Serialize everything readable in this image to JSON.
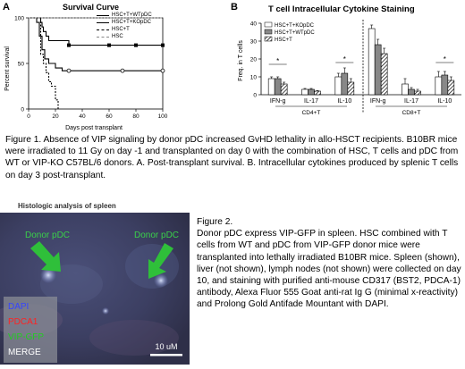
{
  "panel_a": {
    "letter": "A",
    "chart_data": {
      "type": "line",
      "title": "Survival Curve",
      "xlabel": "Days post transplant",
      "ylabel": "Percent survival",
      "xlim": [
        0,
        100
      ],
      "ylim": [
        0,
        100
      ],
      "xticks": [
        "0",
        "20",
        "40",
        "60",
        "80",
        "100"
      ],
      "yticks": [
        "0",
        "50",
        "100"
      ],
      "legend_position": "top-right",
      "series": [
        {
          "name": "HSC+T+WTpDC",
          "style": "solid-filled-square",
          "x": [
            0,
            8,
            9,
            10,
            11,
            13,
            15,
            30,
            100
          ],
          "y": [
            100,
            100,
            95,
            90,
            85,
            80,
            75,
            70,
            70
          ]
        },
        {
          "name": "HSC+T+KOpDC",
          "style": "solid-open-circle",
          "x": [
            0,
            6,
            8,
            10,
            12,
            15,
            20,
            25,
            100
          ],
          "y": [
            100,
            95,
            80,
            65,
            55,
            50,
            45,
            42,
            42
          ]
        },
        {
          "name": "HSC+T",
          "style": "dashed",
          "x": [
            0,
            7,
            9,
            11,
            13,
            15,
            17,
            20,
            22
          ],
          "y": [
            100,
            100,
            60,
            50,
            40,
            30,
            25,
            10,
            0
          ]
        },
        {
          "name": "HSC",
          "style": "dashed-flat",
          "x": [
            0,
            100
          ],
          "y": [
            100,
            100
          ]
        }
      ]
    }
  },
  "panel_b": {
    "letter": "B",
    "chart_data": {
      "type": "bar",
      "title": "T cell Intracellular Cytokine Staining",
      "ylabel": "Freq. in T cells",
      "ylim": [
        0,
        40
      ],
      "yticks": [
        "0",
        "10",
        "20",
        "30",
        "40"
      ],
      "groups": [
        "CD4+T",
        "CD8+T"
      ],
      "categories": [
        "IFN-g",
        "IL-17",
        "IL-10",
        "IFN-g",
        "IL-17",
        "IL-10"
      ],
      "legend_position": "top-left",
      "series": [
        {
          "name": "HSC+T+KOpDC",
          "fill": "open",
          "values": [
            9,
            3,
            10,
            37,
            6,
            10
          ]
        },
        {
          "name": "HSC+T+WTpDC",
          "fill": "grey",
          "values": [
            9,
            3,
            12,
            28,
            3,
            11
          ]
        },
        {
          "name": "HSC+T",
          "fill": "hatched",
          "values": [
            6,
            2,
            7,
            23,
            2,
            8
          ]
        }
      ],
      "errors": [
        [
          1,
          0.5,
          2,
          2,
          3,
          3
        ],
        [
          1,
          0.5,
          3,
          3,
          1,
          2
        ],
        [
          1,
          0.3,
          2,
          3,
          1,
          2
        ]
      ],
      "significance": [
        "*",
        "*",
        "*",
        "*"
      ]
    }
  },
  "figure1_caption": "Figure 1. Absence of VIP signaling by donor pDC increased GvHD lethality in allo-HSCT recipients. B10BR mice were irradiated to  11 Gy on day -1 and transplanted on day 0 with the combination of HSC, T cells and pDC from WT or VIP-KO C57BL/6 donors. A. Post-transplant survival. B. Intracellular cytokines produced by splenic T cells on day 3 post-transplant.",
  "micrograph": {
    "title": "Histologic analysis of spleen",
    "labels": [
      "Donor pDC",
      "Donor pDC"
    ],
    "legend": [
      {
        "label": "DAPI",
        "color": "#3344ff"
      },
      {
        "label": "PDCA1",
        "color": "#ff2222"
      },
      {
        "label": "VIP-GFP",
        "color": "#22cc22"
      },
      {
        "label": "MERGE",
        "color": "#ffffff"
      }
    ],
    "scale_bar": "10 uM",
    "colors": {
      "background": "#3b3f63",
      "arrow": "#2fbf3a",
      "label": "#3ad04a"
    }
  },
  "figure2": {
    "heading": "Figure 2.",
    "text": "Donor pDC express VIP-GFP in spleen.  HSC combined with T cells from WT and pDC from VIP-GFP donor mice were transplanted into lethally irradiated B10BR mice. Spleen (shown), liver (not shown), lymph nodes (not shown) were collected on day 10, and staining with purified anti-mouse CD317 (BST2, PDCA-1) antibody, Alexa Fluor 555 Goat anti-rat Ig G (minimal x-reactivity) and Prolong Gold Antifade Mountant with DAPI."
  }
}
